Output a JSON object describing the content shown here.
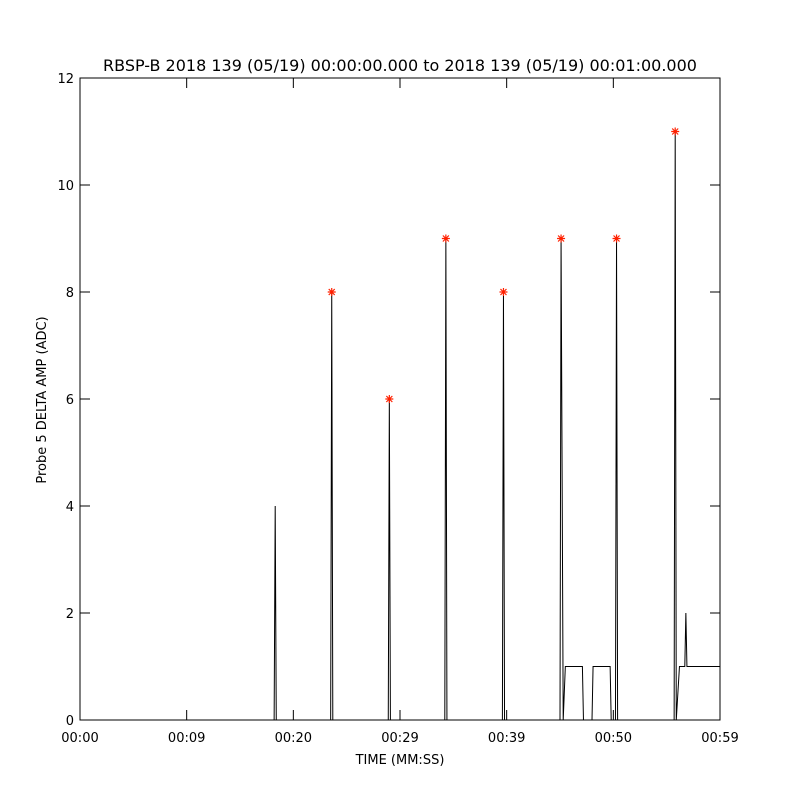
{
  "chart_data": {
    "type": "line",
    "title": "RBSP-B 2018 139 (05/19) 00:00:00.000 to 2018 139 (05/19) 00:01:00.000",
    "xlabel": "TIME (MM:SS)",
    "ylabel": "Probe 5 DELTA AMP (ADC)",
    "xlim": [
      0,
      60
    ],
    "xticks": [
      {
        "value": 0,
        "label": "00:00"
      },
      {
        "value": 10,
        "label": "00:09"
      },
      {
        "value": 20,
        "label": "00:20"
      },
      {
        "value": 30,
        "label": "00:29"
      },
      {
        "value": 40,
        "label": "00:39"
      },
      {
        "value": 50,
        "label": "00:50"
      },
      {
        "value": 60,
        "label": "00:59"
      }
    ],
    "ylim": [
      0,
      12
    ],
    "yticks": [
      0,
      2,
      4,
      6,
      8,
      10,
      12
    ],
    "series": [
      {
        "type": "line",
        "color": "#000000",
        "x": [
          0,
          18.2,
          18.3,
          18.4,
          23.5,
          23.6,
          23.7,
          28.9,
          29.0,
          29.1,
          34.2,
          34.3,
          34.4,
          39.6,
          39.7,
          39.8,
          45.0,
          45.1,
          45.3,
          45.5,
          47.1,
          47.2,
          48.0,
          48.1,
          49.7,
          49.8,
          50.2,
          50.3,
          50.4,
          55.7,
          55.8,
          55.9,
          56.2,
          56.7,
          56.8,
          56.9,
          60
        ],
        "values": [
          0,
          0,
          4,
          0,
          0,
          8,
          0,
          0,
          6,
          0,
          0,
          9,
          0,
          0,
          8,
          0,
          0,
          9,
          0,
          1,
          1,
          0,
          0,
          1,
          1,
          0,
          0,
          9,
          0,
          0,
          11,
          0,
          1,
          1,
          2,
          1,
          1
        ]
      },
      {
        "type": "scatter",
        "color": "#ff2000",
        "marker": "asterisk",
        "x": [
          23.6,
          29.0,
          34.3,
          39.7,
          45.1,
          50.3,
          55.8
        ],
        "values": [
          8,
          6,
          9,
          8,
          9,
          9,
          11
        ]
      }
    ]
  }
}
